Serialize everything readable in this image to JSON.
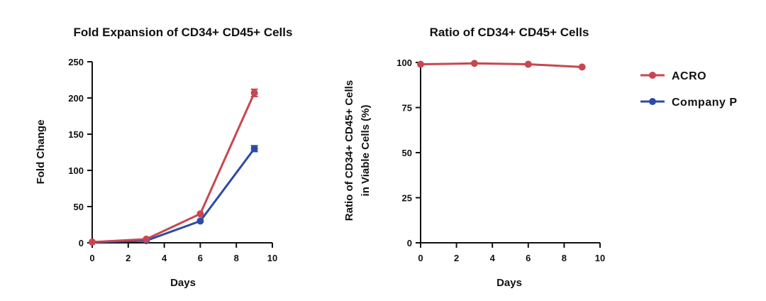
{
  "legend": [
    {
      "name": "ACRO",
      "color": "#c8474f"
    },
    {
      "name": "Company P",
      "color": "#2e4aa5"
    }
  ],
  "chart_data": [
    {
      "type": "line",
      "title": "Fold Expansion of CD34+ CD45+ Cells",
      "xlabel": "Days",
      "ylabel": "Fold Change",
      "xlim": [
        0,
        10
      ],
      "ylim": [
        0,
        250
      ],
      "xticks": [
        0,
        2,
        4,
        6,
        8,
        10
      ],
      "yticks": [
        0,
        50,
        100,
        150,
        200,
        250
      ],
      "x": [
        0,
        3,
        6,
        9
      ],
      "series": [
        {
          "name": "ACRO",
          "color": "#c8474f",
          "values": [
            1,
            5,
            40,
            207
          ],
          "error": [
            0,
            0,
            0,
            5
          ]
        },
        {
          "name": "Company P",
          "color": "#2e4aa5",
          "values": [
            1,
            3,
            30,
            130
          ],
          "error": [
            0,
            0,
            0,
            4
          ]
        }
      ]
    },
    {
      "type": "line",
      "title": "Ratio of CD34+ CD45+ Cells",
      "xlabel": "Days",
      "ylabel_lines": [
        "Ratio of CD34+ CD45+ Cells",
        "in Viable Cells (%)"
      ],
      "xlim": [
        0,
        10
      ],
      "ylim": [
        0,
        100
      ],
      "xticks": [
        0,
        2,
        4,
        6,
        8,
        10
      ],
      "yticks": [
        0,
        25,
        50,
        75,
        100
      ],
      "x": [
        0,
        3,
        6,
        9
      ],
      "series": [
        {
          "name": "ACRO",
          "color": "#c8474f",
          "values": [
            99,
            99.5,
            99,
            97.5
          ]
        }
      ]
    }
  ]
}
